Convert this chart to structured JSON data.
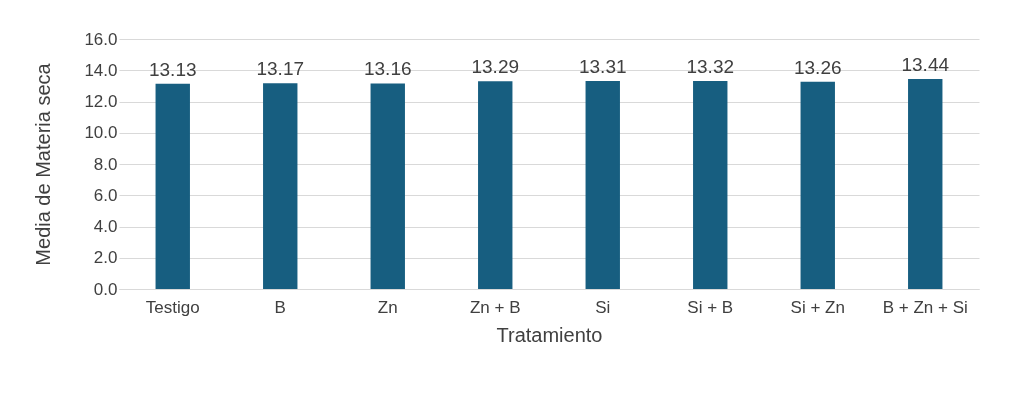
{
  "chart_data": {
    "type": "bar",
    "xlabel": "Tratamiento",
    "ylabel": "Media de Materia seca",
    "categories": [
      "Testigo",
      "B",
      "Zn",
      "Zn + B",
      "Si",
      "Si + B",
      "Si + Zn",
      "B + Zn + Si"
    ],
    "values": [
      13.13,
      13.17,
      13.16,
      13.29,
      13.31,
      13.32,
      13.26,
      13.44
    ],
    "color": "#175e80",
    "data_labels": true,
    "grid": "y",
    "ylim": [
      0,
      16
    ],
    "yticks": [
      {
        "value": 0,
        "label": "0.0"
      },
      {
        "value": 2,
        "label": "2.0"
      },
      {
        "value": 4,
        "label": "4.0"
      },
      {
        "value": 6,
        "label": "6.0"
      },
      {
        "value": 8,
        "label": "8.0"
      },
      {
        "value": 10,
        "label": "10.0"
      },
      {
        "value": 12,
        "label": "12.0"
      },
      {
        "value": 14,
        "label": "14.0"
      },
      {
        "value": 16,
        "label": "16.0"
      }
    ]
  }
}
